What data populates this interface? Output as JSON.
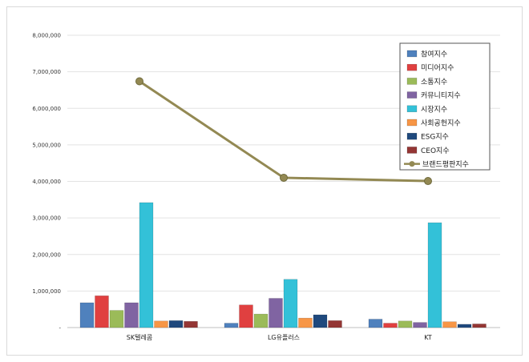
{
  "chart_data": {
    "type": "bar",
    "categories": [
      "SK텔레콤",
      "LG유플러스",
      "KT"
    ],
    "ylim": [
      0,
      8000000
    ],
    "yticks": [
      "-",
      "1,000,000",
      "2,000,000",
      "3,000,000",
      "4,000,000",
      "5,000,000",
      "6,000,000",
      "7,000,000",
      "8,000,000"
    ],
    "grid": true,
    "legend_position": "top-right",
    "series": [
      {
        "name": "참여지수",
        "color": "#4f81bd",
        "values": [
          680000,
          120000,
          230000
        ]
      },
      {
        "name": "미디어지수",
        "color": "#e04040",
        "values": [
          870000,
          620000,
          120000
        ]
      },
      {
        "name": "소통지수",
        "color": "#9bbb59",
        "values": [
          470000,
          370000,
          180000
        ]
      },
      {
        "name": "커뮤니티지수",
        "color": "#8064a2",
        "values": [
          680000,
          800000,
          140000
        ]
      },
      {
        "name": "시장지수",
        "color": "#33c1d8",
        "values": [
          3420000,
          1320000,
          2870000
        ]
      },
      {
        "name": "사회공헌지수",
        "color": "#f79646",
        "values": [
          180000,
          260000,
          160000
        ]
      },
      {
        "name": "ESG지수",
        "color": "#1f497d",
        "values": [
          190000,
          350000,
          90000
        ]
      },
      {
        "name": "CEO지수",
        "color": "#943634",
        "values": [
          170000,
          190000,
          100000
        ]
      }
    ],
    "line_series": {
      "name": "브랜드평판지수",
      "color": "#938953",
      "values": [
        6740000,
        4100000,
        4010000
      ]
    }
  }
}
